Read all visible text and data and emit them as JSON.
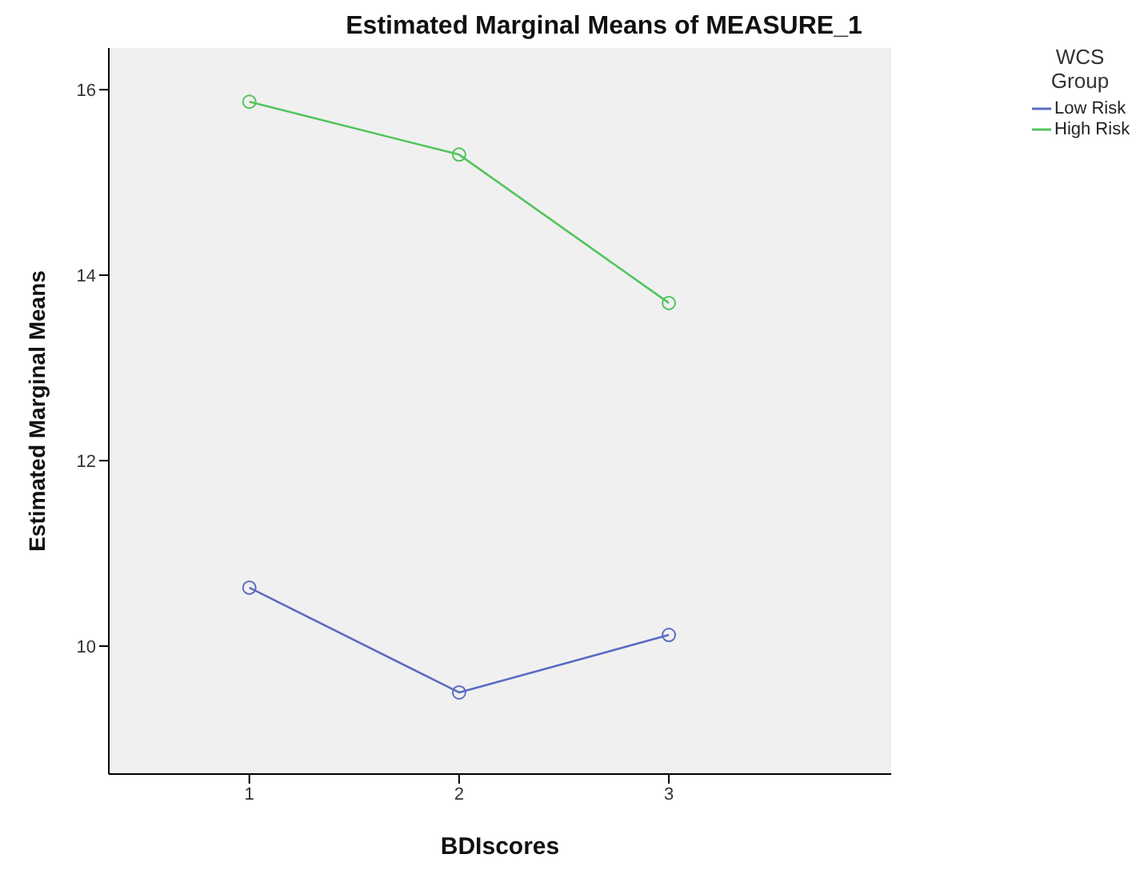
{
  "chart_data": {
    "type": "line",
    "title": "Estimated Marginal Means of MEASURE_1",
    "xlabel": "BDIscores",
    "ylabel": "Estimated Marginal Means",
    "legend_title": "WCS Group",
    "x": [
      1,
      2,
      3
    ],
    "series": [
      {
        "name": "Low Risk",
        "color": "#5a6cc4",
        "values": [
          10.63,
          9.5,
          10.12
        ]
      },
      {
        "name": "High Risk",
        "color": "#52c45c",
        "values": [
          15.87,
          15.3,
          13.7
        ]
      }
    ],
    "xlim": [
      0.33,
      4.06
    ],
    "xticks": [
      1,
      2,
      3
    ],
    "ylim": [
      8.62,
      16.45
    ],
    "yticks": [
      10,
      12,
      14,
      16
    ],
    "grid": false,
    "legend": "top right",
    "marker": "circle",
    "line_style": "solid"
  }
}
